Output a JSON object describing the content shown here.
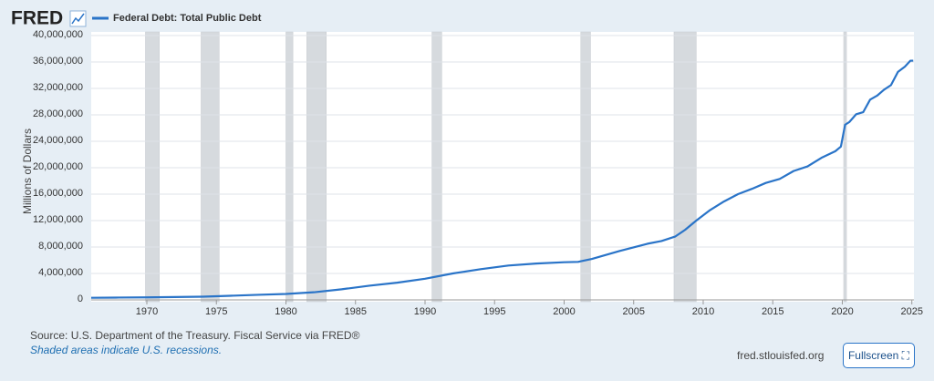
{
  "header": {
    "logo": "FRED"
  },
  "footer": {
    "source": "Source: U.S. Department of the Treasury. Fiscal Service via FRED®",
    "note": "Shaded areas indicate U.S. recessions.",
    "site": "fred.stlouisfed.org",
    "button": "Fullscreen"
  },
  "chart_data": {
    "type": "line",
    "y_label": "Millions of Dollars",
    "series": [
      {
        "name": "Federal Debt: Total Public Debt",
        "color": "#2a74c8",
        "x": [
          1966,
          1968,
          1970,
          1972,
          1974,
          1976,
          1978,
          1980,
          1982,
          1984,
          1986,
          1988,
          1990,
          1992,
          1994,
          1996,
          1998,
          2000,
          2001,
          2002,
          2004,
          2006,
          2007,
          2008,
          2008.7,
          2009.5,
          2010.5,
          2011.5,
          2012.5,
          2013.5,
          2014.5,
          2015.5,
          2016.5,
          2017.5,
          2018.5,
          2019.5,
          2019.9,
          2020.2,
          2020.5,
          2021,
          2021.5,
          2022,
          2022.5,
          2023,
          2023.5,
          2024,
          2024.5,
          2024.9,
          2025.1
        ],
        "values": [
          320000,
          350000,
          380000,
          430000,
          480000,
          620000,
          770000,
          900000,
          1150000,
          1600000,
          2150000,
          2600000,
          3200000,
          4000000,
          4650000,
          5200000,
          5500000,
          5700000,
          5750000,
          6200000,
          7400000,
          8500000,
          8900000,
          9600000,
          10600000,
          12000000,
          13600000,
          14900000,
          16000000,
          16800000,
          17700000,
          18300000,
          19500000,
          20200000,
          21500000,
          22500000,
          23200000,
          26500000,
          26900000,
          28100000,
          28400000,
          30300000,
          30900000,
          31800000,
          32500000,
          34500000,
          35300000,
          36200000,
          36200000
        ]
      }
    ],
    "recessions": [
      [
        1969.9,
        1970.9
      ],
      [
        1973.9,
        1975.2
      ],
      [
        1980.0,
        1980.5
      ],
      [
        1981.5,
        1982.9
      ],
      [
        1990.5,
        1991.2
      ],
      [
        2001.2,
        2001.9
      ],
      [
        2007.9,
        2009.5
      ],
      [
        2020.1,
        2020.3
      ]
    ],
    "xlim": [
      1966,
      2025.15
    ],
    "xticks": [
      1970,
      1975,
      1980,
      1985,
      1990,
      1995,
      2000,
      2005,
      2010,
      2015,
      2020,
      2025
    ],
    "ylim": [
      0,
      40000000
    ],
    "yticks": [
      0,
      {
        "value": 4000000,
        "label": "4,000,000"
      },
      {
        "value": 8000000,
        "label": "8,000,000"
      },
      {
        "value": 12000000,
        "label": "12,000,000"
      },
      {
        "value": 16000000,
        "label": "16,000,000"
      },
      {
        "value": 20000000,
        "label": "20,000,000"
      },
      {
        "value": 24000000,
        "label": "24,000,000"
      },
      {
        "value": 28000000,
        "label": "28,000,000"
      },
      {
        "value": 32000000,
        "label": "32,000,000"
      },
      {
        "value": 36000000,
        "label": "36,000,000"
      },
      {
        "value": 40000000,
        "label": "40,000,000"
      }
    ],
    "grid": true
  }
}
